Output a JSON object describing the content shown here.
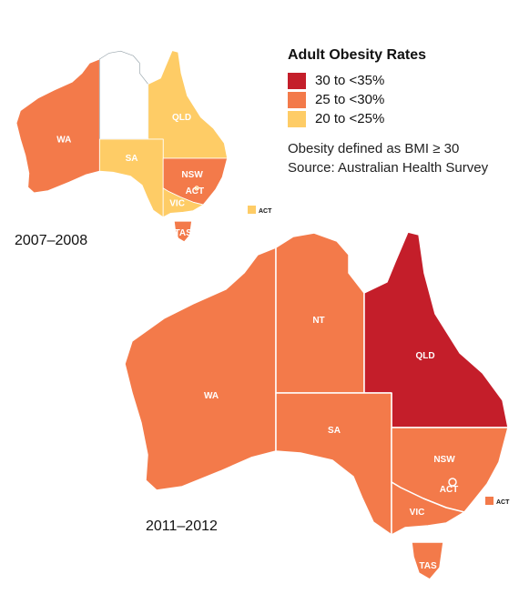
{
  "legend": {
    "title": "Adult Obesity Rates",
    "bins": [
      {
        "label": "30 to <35%",
        "color": "#c41e2a"
      },
      {
        "label": "25 to <30%",
        "color": "#f37a4a"
      },
      {
        "label": "20 to <25%",
        "color": "#fecc66"
      }
    ],
    "note": "Obesity defined as BMI ≥ 30",
    "source": "Source: Australian Health Survey"
  },
  "colors": {
    "none": "#ffffff",
    "border": "#ffffff",
    "outline": "#9aa6ad"
  },
  "maps": [
    {
      "period": "2007–2008",
      "states": {
        "WA": {
          "label": "WA",
          "bin": 1
        },
        "NT": {
          "label": "",
          "bin": null
        },
        "QLD": {
          "label": "QLD",
          "bin": 2
        },
        "SA": {
          "label": "SA",
          "bin": 2
        },
        "NSW": {
          "label": "NSW",
          "bin": 1
        },
        "ACT": {
          "label": "ACT",
          "bin": 2
        },
        "VIC": {
          "label": "VIC",
          "bin": 2
        },
        "TAS": {
          "label": "TAS",
          "bin": 1
        }
      },
      "act_key_label": "ACT"
    },
    {
      "period": "2011–2012",
      "states": {
        "WA": {
          "label": "WA",
          "bin": 1
        },
        "NT": {
          "label": "NT",
          "bin": 1
        },
        "QLD": {
          "label": "QLD",
          "bin": 0
        },
        "SA": {
          "label": "SA",
          "bin": 1
        },
        "NSW": {
          "label": "NSW",
          "bin": 1
        },
        "ACT": {
          "label": "ACT",
          "bin": 1
        },
        "VIC": {
          "label": "VIC",
          "bin": 1
        },
        "TAS": {
          "label": "TAS",
          "bin": 1
        }
      },
      "act_key_label": "ACT"
    }
  ]
}
